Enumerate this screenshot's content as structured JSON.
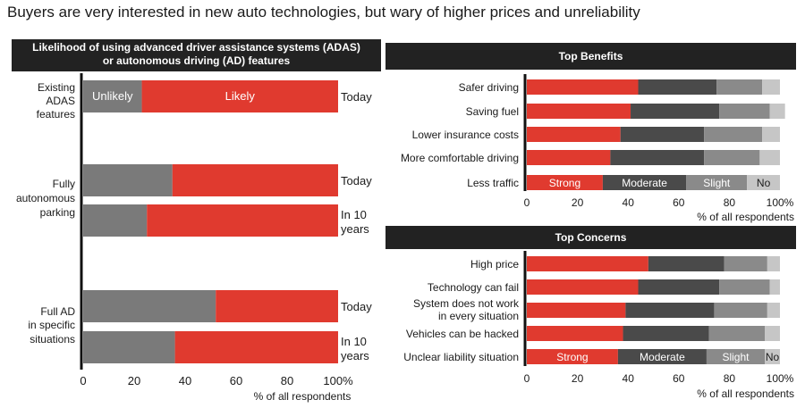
{
  "title": "Buyers are very interested in new auto technologies, but wary of higher prices and unreliability",
  "colors": {
    "likely": "#e03a2f",
    "unlikely": "#7a7a7a",
    "strong": "#e03a2f",
    "moderate": "#4a4a4a",
    "slight": "#8a8a8a",
    "no": "#c6c6c6",
    "axis": "#111111"
  },
  "chart_data": [
    {
      "type": "bar",
      "orientation": "horizontal",
      "stacked": true,
      "title": "Likelihood of using advanced driver assistance systems (ADAS) or autonomous driving (AD) features",
      "title_lines": [
        "Likelihood of using advanced driver assistance systems (ADAS)",
        "or autonomous driving (AD) features"
      ],
      "xlabel": "% of all respondents",
      "xlim": [
        0,
        100
      ],
      "xticks": [
        "0",
        "20",
        "40",
        "60",
        "80",
        "100%"
      ],
      "series": [
        {
          "name": "Unlikely",
          "color_key": "unlikely"
        },
        {
          "name": "Likely",
          "color_key": "likely"
        }
      ],
      "groups": [
        {
          "label": [
            "Existing",
            "ADAS",
            "features"
          ],
          "bars": [
            {
              "period": [
                "Today"
              ],
              "values": [
                23,
                77
              ],
              "inline_labels": [
                "Unlikely",
                "Likely"
              ]
            }
          ]
        },
        {
          "label": [
            "Fully",
            "autonomous",
            "parking"
          ],
          "bars": [
            {
              "period": [
                "Today"
              ],
              "values": [
                35,
                65
              ]
            },
            {
              "period": [
                "In 10",
                "years"
              ],
              "values": [
                25,
                75
              ]
            }
          ]
        },
        {
          "label": [
            "Full AD",
            "in specific",
            "situations"
          ],
          "bars": [
            {
              "period": [
                "Today"
              ],
              "values": [
                52,
                48
              ]
            },
            {
              "period": [
                "In 10",
                "years"
              ],
              "values": [
                36,
                64
              ]
            }
          ]
        }
      ]
    },
    {
      "type": "bar",
      "orientation": "horizontal",
      "stacked": true,
      "title": "Top Benefits",
      "xlabel": "% of all respondents",
      "xlim": [
        0,
        100
      ],
      "xticks": [
        "0",
        "20",
        "40",
        "60",
        "80",
        "100%"
      ],
      "series": [
        {
          "name": "Strong",
          "color_key": "strong"
        },
        {
          "name": "Moderate",
          "color_key": "moderate"
        },
        {
          "name": "Slight",
          "color_key": "slight"
        },
        {
          "name": "No",
          "color_key": "no"
        }
      ],
      "categories": [
        "Safer driving",
        "Saving fuel",
        "Lower insurance costs",
        "More comfortable driving",
        "Less traffic"
      ],
      "values": [
        [
          44,
          31,
          18,
          7
        ],
        [
          41,
          35,
          20,
          6
        ],
        [
          37,
          33,
          23,
          7
        ],
        [
          33,
          37,
          22,
          8
        ],
        [
          30,
          33,
          24,
          13
        ]
      ],
      "inline_label_row": 4
    },
    {
      "type": "bar",
      "orientation": "horizontal",
      "stacked": true,
      "title": "Top Concerns",
      "xlabel": "% of all respondents",
      "xlim": [
        0,
        100
      ],
      "xticks": [
        "0",
        "20",
        "40",
        "60",
        "80",
        "100%"
      ],
      "series": [
        {
          "name": "Strong",
          "color_key": "strong"
        },
        {
          "name": "Moderate",
          "color_key": "moderate"
        },
        {
          "name": "Slight",
          "color_key": "slight"
        },
        {
          "name": "No",
          "color_key": "no"
        }
      ],
      "categories": [
        [
          "High price"
        ],
        [
          "Technology can fail"
        ],
        [
          "System does not work",
          "in every situation"
        ],
        [
          "Vehicles can be hacked"
        ],
        [
          "Unclear liability situation"
        ]
      ],
      "values": [
        [
          48,
          30,
          17,
          5
        ],
        [
          44,
          32,
          20,
          4
        ],
        [
          39,
          35,
          21,
          5
        ],
        [
          38,
          34,
          22,
          6
        ],
        [
          36,
          35,
          23,
          6
        ]
      ],
      "inline_label_row": 4
    }
  ]
}
